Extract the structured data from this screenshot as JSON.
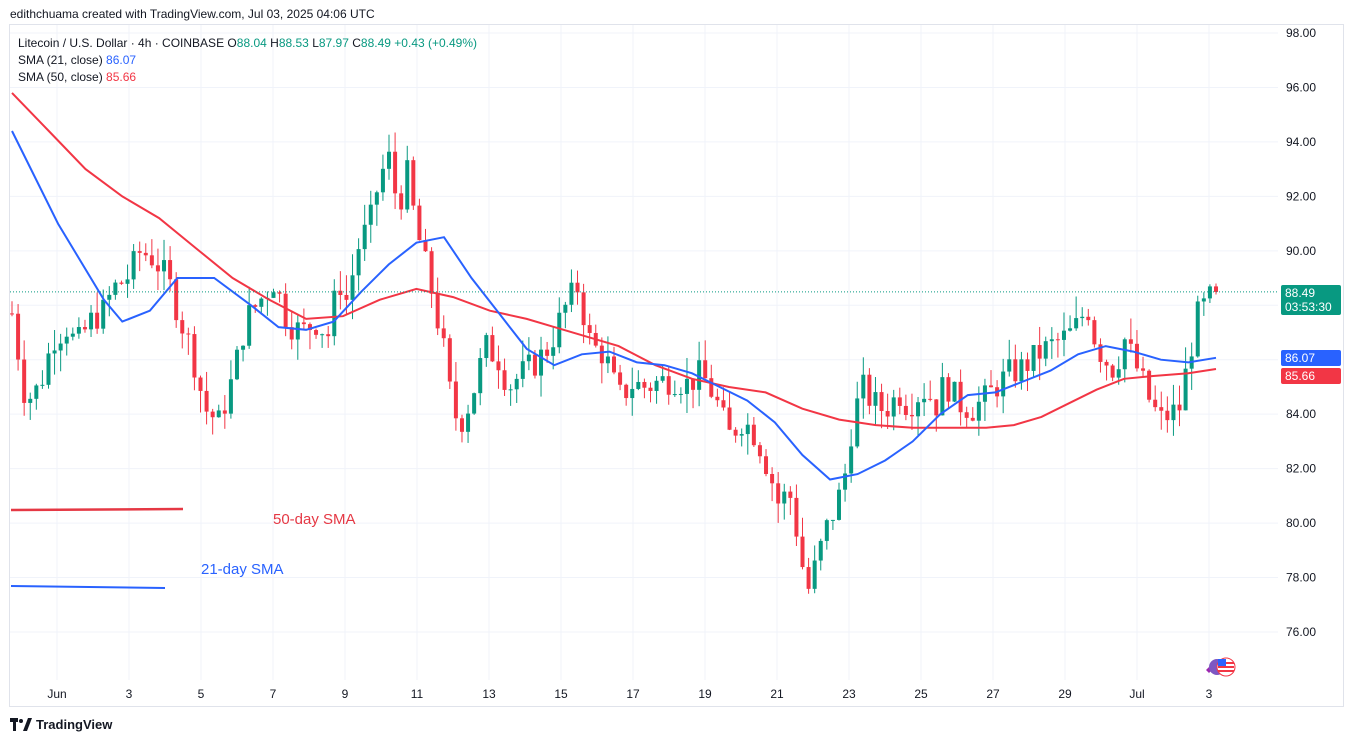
{
  "credit": "edithchuama created with TradingView.com, Jul 03, 2025 04:06 UTC",
  "legend": {
    "symbol": "Litecoin / U.S. Dollar · 4h · COINBASE",
    "o_label": "O",
    "o_val": "88.04",
    "h_label": "H",
    "h_val": "88.53",
    "l_label": "L",
    "l_val": "87.97",
    "c_label": "C",
    "c_val": "88.49",
    "change": "+0.43 (+0.49%)",
    "sma21_label": "SMA (21, close)",
    "sma21_val": "86.07",
    "sma50_label": "SMA (50, close)",
    "sma50_val": "85.66"
  },
  "annotations": {
    "sma50": "50-day SMA",
    "sma21": "21-day SMA"
  },
  "badges": {
    "price": "88.49",
    "countdown": "03:53:30",
    "sma21": "86.07",
    "sma50": "85.66"
  },
  "footer": {
    "brand": "TradingView"
  },
  "colors": {
    "up": "#089981",
    "down": "#f23645",
    "sma21": "#2962ff",
    "sma50": "#f23645",
    "grid": "#f0f3fa"
  },
  "chart_data": {
    "type": "candlestick",
    "ylim": [
      74.5,
      98.5
    ],
    "y_ticks": [
      "98.00",
      "96.00",
      "94.00",
      "92.00",
      "90.00",
      "88.00",
      "86.00",
      "84.00",
      "82.00",
      "80.00",
      "78.00",
      "76.00"
    ],
    "x_tick_labels": [
      "Jun",
      "3",
      "5",
      "7",
      "9",
      "11",
      "13",
      "15",
      "17",
      "19",
      "21",
      "23",
      "25",
      "27",
      "29",
      "Jul",
      "3"
    ],
    "candles_per_day": 6,
    "total_candles": 199,
    "last_price": 88.49,
    "close_path": [
      [
        0,
        87.7
      ],
      [
        3,
        84.5
      ],
      [
        6,
        85.0
      ],
      [
        9,
        86.8
      ],
      [
        12,
        87.2
      ],
      [
        14,
        86.5
      ],
      [
        17,
        87.4
      ],
      [
        20,
        87.8
      ],
      [
        22,
        88.6
      ],
      [
        25,
        89.0
      ],
      [
        28,
        90.0
      ],
      [
        31,
        89.7
      ],
      [
        34,
        88.9
      ],
      [
        37,
        87.3
      ],
      [
        39,
        86.4
      ],
      [
        42,
        84.2
      ],
      [
        45,
        83.7
      ],
      [
        48,
        85.3
      ],
      [
        51,
        87.5
      ],
      [
        54,
        88.2
      ],
      [
        57,
        88.9
      ],
      [
        60,
        87.4
      ],
      [
        63,
        87.0
      ],
      [
        66,
        87.4
      ],
      [
        69,
        86.9
      ],
      [
        71,
        89.0
      ],
      [
        73,
        88.1
      ],
      [
        75,
        90.0
      ],
      [
        78,
        91.1
      ],
      [
        80,
        92.7
      ],
      [
        82,
        93.4
      ],
      [
        84,
        91.6
      ],
      [
        86,
        92.8
      ],
      [
        88,
        90.8
      ],
      [
        91,
        88.8
      ],
      [
        94,
        86.3
      ],
      [
        96,
        84.0
      ],
      [
        98,
        83.8
      ],
      [
        100,
        84.6
      ],
      [
        103,
        86.5
      ],
      [
        106,
        86.0
      ],
      [
        108,
        85.0
      ],
      [
        111,
        85.5
      ],
      [
        114,
        85.9
      ],
      [
        117,
        86.5
      ],
      [
        120,
        87.8
      ],
      [
        123,
        88.7
      ],
      [
        126,
        86.5
      ],
      [
        129,
        86.2
      ],
      [
        132,
        84.6
      ],
      [
        135,
        85.1
      ],
      [
        138,
        85.0
      ],
      [
        141,
        85.2
      ],
      [
        144,
        85.3
      ],
      [
        147,
        85.1
      ],
      [
        150,
        85.5
      ],
      [
        153,
        84.6
      ],
      [
        156,
        83.2
      ],
      [
        159,
        83.8
      ],
      [
        162,
        83.2
      ],
      [
        165,
        81.8
      ],
      [
        167,
        80.6
      ],
      [
        169,
        81.3
      ],
      [
        171,
        79.5
      ],
      [
        173,
        77.4
      ],
      [
        175,
        78.5
      ],
      [
        177,
        79.7
      ],
      [
        179,
        80.5
      ],
      [
        181,
        81.5
      ],
      [
        183,
        83.8
      ],
      [
        185,
        85.0
      ],
      [
        187,
        84.5
      ],
      [
        189,
        84.2
      ],
      [
        191,
        84.3
      ],
      [
        193,
        84.8
      ],
      [
        195,
        84.3
      ],
      [
        197,
        84.7
      ],
      [
        199,
        84.9
      ],
      [
        201,
        84.3
      ],
      [
        203,
        85.2
      ],
      [
        206,
        84.4
      ],
      [
        209,
        84.2
      ],
      [
        212,
        84.6
      ],
      [
        214,
        85.0
      ],
      [
        217,
        85.5
      ],
      [
        219,
        85.6
      ],
      [
        222,
        86.0
      ],
      [
        224,
        86.3
      ],
      [
        227,
        86.6
      ],
      [
        230,
        86.9
      ],
      [
        232,
        87.3
      ],
      [
        234,
        88.0
      ],
      [
        236,
        86.5
      ],
      [
        238,
        86.0
      ],
      [
        240,
        85.6
      ],
      [
        242,
        86.8
      ],
      [
        244,
        86.0
      ],
      [
        246,
        85.2
      ],
      [
        248,
        84.3
      ],
      [
        250,
        83.8
      ],
      [
        252,
        84.0
      ],
      [
        254,
        84.2
      ],
      [
        256,
        86.0
      ],
      [
        258,
        87.6
      ],
      [
        260,
        88.1
      ],
      [
        262,
        88.49
      ]
    ],
    "sma21": [
      [
        0,
        94.4
      ],
      [
        10,
        91.0
      ],
      [
        20,
        88.2
      ],
      [
        24,
        87.4
      ],
      [
        30,
        87.8
      ],
      [
        36,
        89.0
      ],
      [
        44,
        89.0
      ],
      [
        52,
        88.0
      ],
      [
        58,
        87.2
      ],
      [
        64,
        87.1
      ],
      [
        70,
        87.4
      ],
      [
        76,
        88.5
      ],
      [
        82,
        89.5
      ],
      [
        88,
        90.3
      ],
      [
        94,
        90.5
      ],
      [
        100,
        89.0
      ],
      [
        106,
        87.7
      ],
      [
        112,
        86.4
      ],
      [
        118,
        85.8
      ],
      [
        124,
        86.2
      ],
      [
        130,
        86.3
      ],
      [
        136,
        85.9
      ],
      [
        142,
        85.8
      ],
      [
        148,
        85.5
      ],
      [
        154,
        85.0
      ],
      [
        160,
        84.5
      ],
      [
        166,
        83.7
      ],
      [
        172,
        82.5
      ],
      [
        178,
        81.6
      ],
      [
        184,
        81.8
      ],
      [
        190,
        82.3
      ],
      [
        196,
        83.0
      ],
      [
        202,
        84.0
      ],
      [
        208,
        84.7
      ],
      [
        214,
        84.8
      ],
      [
        220,
        85.2
      ],
      [
        226,
        85.6
      ],
      [
        232,
        86.2
      ],
      [
        238,
        86.5
      ],
      [
        244,
        86.3
      ],
      [
        250,
        86.0
      ],
      [
        256,
        85.9
      ],
      [
        262,
        86.07
      ]
    ],
    "sma50": [
      [
        0,
        95.8
      ],
      [
        8,
        94.4
      ],
      [
        16,
        93.0
      ],
      [
        24,
        92.0
      ],
      [
        32,
        91.2
      ],
      [
        40,
        90.1
      ],
      [
        48,
        89.0
      ],
      [
        56,
        88.2
      ],
      [
        64,
        87.5
      ],
      [
        72,
        87.6
      ],
      [
        80,
        88.2
      ],
      [
        88,
        88.6
      ],
      [
        96,
        88.3
      ],
      [
        104,
        87.8
      ],
      [
        112,
        87.5
      ],
      [
        118,
        87.2
      ],
      [
        124,
        86.9
      ],
      [
        132,
        86.5
      ],
      [
        140,
        85.8
      ],
      [
        148,
        85.3
      ],
      [
        156,
        85.0
      ],
      [
        164,
        84.8
      ],
      [
        172,
        84.2
      ],
      [
        180,
        83.8
      ],
      [
        188,
        83.6
      ],
      [
        196,
        83.5
      ],
      [
        204,
        83.5
      ],
      [
        212,
        83.5
      ],
      [
        218,
        83.6
      ],
      [
        224,
        83.9
      ],
      [
        230,
        84.4
      ],
      [
        236,
        84.9
      ],
      [
        242,
        85.3
      ],
      [
        248,
        85.4
      ],
      [
        256,
        85.5
      ],
      [
        262,
        85.66
      ]
    ]
  }
}
